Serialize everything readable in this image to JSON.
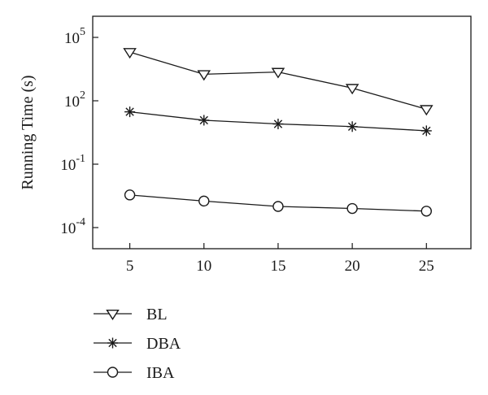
{
  "chart_data": {
    "type": "line",
    "title": "",
    "xlabel": "",
    "ylabel": "Running Time (s)",
    "yscale": "log",
    "xlim": [
      2.5,
      28
    ],
    "ylim": [
      1e-05,
      1000000
    ],
    "x": [
      5,
      10,
      15,
      20,
      25
    ],
    "x_ticks": [
      {
        "value": 5,
        "label": "5"
      },
      {
        "value": 10,
        "label": "10"
      },
      {
        "value": 15,
        "label": "15"
      },
      {
        "value": 20,
        "label": "20"
      },
      {
        "value": 25,
        "label": "25"
      }
    ],
    "y_ticks": [
      {
        "value": 100000,
        "base": "10",
        "exp": "5"
      },
      {
        "value": 100,
        "base": "10",
        "exp": "2"
      },
      {
        "value": 0.1,
        "base": "10",
        "exp": "-1"
      },
      {
        "value": 0.0001,
        "base": "10",
        "exp": "-4"
      }
    ],
    "grid": false,
    "legend_position": "bottom-left",
    "series": [
      {
        "name": "BL",
        "marker": "triangle-down",
        "color": "#1a1a1a",
        "values": [
          20000,
          1800,
          2300,
          400,
          40
        ]
      },
      {
        "name": "DBA",
        "marker": "asterisk",
        "color": "#1a1a1a",
        "values": [
          30,
          12,
          8,
          6,
          3.8
        ]
      },
      {
        "name": "IBA",
        "marker": "circle",
        "color": "#1a1a1a",
        "values": [
          0.0035,
          0.0018,
          0.001,
          0.0008,
          0.0006
        ]
      }
    ]
  }
}
